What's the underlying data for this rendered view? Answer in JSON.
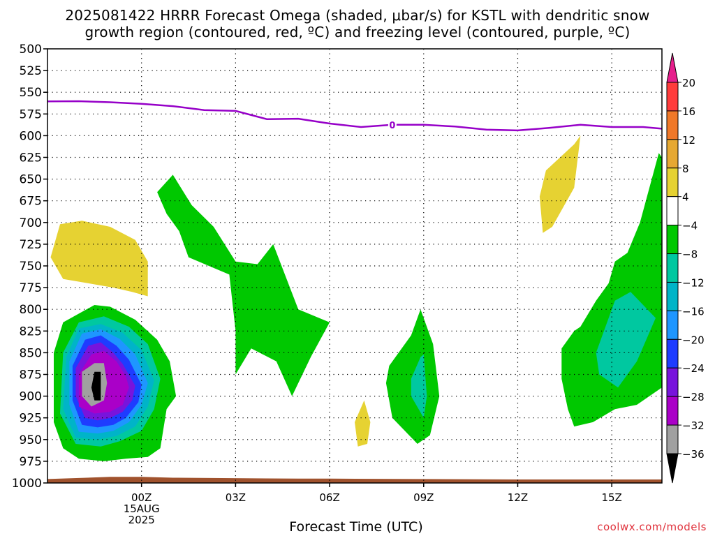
{
  "header": {
    "title_line1": "2025081422 HRRR Forecast Omega (shaded, μbar/s) for KSTL with dendritic snow",
    "title_line2": "growth region (contoured, red, ºC) and freezing level (contoured, purple, ºC)"
  },
  "footer": {
    "xlabel": "Forecast Time (UTC)",
    "credit": "coolwx.com/models"
  },
  "chart_data": {
    "type": "contour",
    "x_unit": "forecast hour (hours after 2025-08-15 00Z)",
    "xlim": [
      -3,
      16.6
    ],
    "ylim": [
      1000,
      500
    ],
    "y_reversed": true,
    "xticks": [
      {
        "x": 0,
        "label": "00Z",
        "sub1": "15AUG",
        "sub2": "2025"
      },
      {
        "x": 3,
        "label": "03Z"
      },
      {
        "x": 6,
        "label": "06Z"
      },
      {
        "x": 9,
        "label": "09Z"
      },
      {
        "x": 12,
        "label": "12Z"
      },
      {
        "x": 15,
        "label": "15Z"
      }
    ],
    "yticks": [
      500,
      525,
      550,
      575,
      600,
      625,
      650,
      675,
      700,
      725,
      750,
      775,
      800,
      825,
      850,
      875,
      900,
      925,
      950,
      975,
      1000
    ],
    "grid": true,
    "colorbar": {
      "labels": [
        "20",
        "16",
        "12",
        "8",
        "4",
        "−4",
        "−8",
        "−12",
        "−16",
        "−20",
        "−24",
        "−28",
        "−32",
        "−36"
      ],
      "colors": [
        "#ff3c3c",
        "#f07828",
        "#e6a832",
        "#e6d232",
        "#ffffff",
        "#00c800",
        "#00c8a0",
        "#00b4c8",
        "#1e96ff",
        "#1e3cff",
        "#7814dc",
        "#aa00c8",
        "#a0a0a0"
      ],
      "top_arrow": "#e61e8c",
      "bottom_arrow": "#000000"
    },
    "freezing_level": {
      "label": "0",
      "label_x": 8.0,
      "color": "#9600c8",
      "x": [
        -3,
        -2,
        -1,
        0,
        1,
        2,
        3,
        4,
        5,
        6,
        7,
        8,
        9,
        10,
        11,
        12,
        13,
        14,
        15,
        16,
        16.6
      ],
      "y": [
        560.5,
        560.3,
        561.5,
        563.3,
        566,
        570.5,
        571.5,
        581,
        580.5,
        586,
        590,
        587.5,
        587.5,
        589.5,
        593,
        594,
        591,
        587.5,
        590,
        590,
        592
      ]
    },
    "omega_regions": [
      {
        "level": "4 to 8",
        "color": "#e6d232",
        "x": [
          -2.6,
          -1.9,
          -1.0,
          -0.2,
          0.2,
          0.2,
          -0.3,
          -0.9,
          -1.7,
          -2.5,
          -2.9,
          -2.6
        ],
        "y": [
          702,
          698,
          705,
          720,
          745,
          785,
          780,
          775,
          770,
          765,
          740,
          702
        ]
      },
      {
        "level": "4 to 8",
        "color": "#e6d232",
        "x": [
          6.8,
          7.1,
          7.3,
          7.2,
          6.9,
          6.8
        ],
        "y": [
          930,
          905,
          930,
          955,
          958,
          930
        ]
      },
      {
        "level": "4 to 8",
        "color": "#e6d232",
        "x": [
          13.8,
          14.0,
          13.8,
          13.1,
          12.8,
          12.7,
          12.9,
          13.8
        ],
        "y": [
          610,
          600,
          660,
          705,
          712,
          670,
          640,
          610
        ]
      },
      {
        "level": "-4 to -8",
        "color": "#00c800",
        "x": [
          0.5,
          1.0,
          1.6,
          2.3,
          3.0,
          3.7,
          4.2,
          5.0,
          6.0,
          5.4,
          4.8,
          4.3,
          3.5,
          3.0,
          3.0,
          2.8,
          1.5,
          1.2,
          0.8,
          0.5
        ],
        "y": [
          665,
          645,
          680,
          705,
          745,
          748,
          725,
          800,
          815,
          855,
          900,
          860,
          845,
          875,
          825,
          760,
          740,
          710,
          690,
          665
        ]
      },
      {
        "level": "-4 to -8",
        "color": "#00c800",
        "x": [
          -2.0,
          -1.5,
          -1.0,
          -0.2,
          0.5,
          0.9,
          1.1,
          0.8,
          0.6,
          0.2,
          -0.5,
          -1.2,
          -2.0,
          -2.5,
          -2.8,
          -2.8,
          -2.5,
          -2.0
        ],
        "y": [
          805,
          795,
          797,
          812,
          835,
          860,
          900,
          915,
          960,
          970,
          972,
          975,
          972,
          960,
          930,
          850,
          815,
          805
        ]
      },
      {
        "level": "-4 to -8",
        "color": "#00c800",
        "x": [
          8.6,
          8.9,
          9.3,
          9.5,
          9.2,
          8.8,
          8.0,
          7.8,
          7.9,
          8.6
        ],
        "y": [
          830,
          800,
          840,
          900,
          945,
          955,
          925,
          885,
          865,
          830
        ]
      },
      {
        "level": "-4 to -8",
        "color": "#00c800",
        "x": [
          16.6,
          16.6,
          15.8,
          15.1,
          14.4,
          13.8,
          13.6,
          13.4,
          13.4,
          13.8,
          14.0,
          14.5,
          14.9,
          15.1,
          15.5,
          15.9,
          16.5,
          16.6
        ],
        "y": [
          625,
          890,
          910,
          915,
          930,
          935,
          915,
          880,
          845,
          825,
          820,
          790,
          770,
          745,
          735,
          700,
          620,
          625
        ]
      },
      {
        "level": "-8 to -12",
        "color": "#00c8a0",
        "x": [
          15.1,
          15.6,
          16.4,
          15.8,
          15.2,
          14.6,
          14.5,
          15.1
        ],
        "y": [
          790,
          780,
          810,
          860,
          890,
          875,
          850,
          790
        ]
      },
      {
        "level": "-8 to -12",
        "color": "#00c8a0",
        "x": [
          8.9,
          9.0,
          9.1,
          9.0,
          8.6,
          8.6,
          8.9
        ],
        "y": [
          855,
          852,
          900,
          925,
          900,
          880,
          855
        ]
      },
      {
        "level": "-8 to -12",
        "color": "#00c8a0",
        "x": [
          -2.0,
          -1.2,
          -0.4,
          0.2,
          0.6,
          0.4,
          0.0,
          -0.7,
          -1.3,
          -2.1,
          -2.6,
          -2.5,
          -2.0
        ],
        "y": [
          815,
          808,
          820,
          840,
          880,
          915,
          940,
          952,
          958,
          955,
          920,
          850,
          815
        ]
      },
      {
        "level": "-12 to -16",
        "color": "#00b4c8",
        "x": [
          -2.0,
          -1.3,
          -0.6,
          0.0,
          0.4,
          0.2,
          -0.2,
          -0.8,
          -1.4,
          -2.1,
          -2.5,
          -2.4,
          -2.0
        ],
        "y": [
          822,
          817,
          827,
          847,
          882,
          912,
          935,
          946,
          950,
          948,
          915,
          855,
          822
        ]
      },
      {
        "level": "-16 to -20",
        "color": "#1e96ff",
        "x": [
          -1.9,
          -1.3,
          -0.7,
          -0.2,
          0.2,
          0.0,
          -0.4,
          -0.9,
          -1.4,
          -2.0,
          -2.3,
          -2.3,
          -1.9
        ],
        "y": [
          828,
          823,
          834,
          852,
          885,
          910,
          930,
          940,
          943,
          941,
          910,
          860,
          828
        ]
      },
      {
        "level": "-20 to -24",
        "color": "#1e3cff",
        "x": [
          -1.8,
          -1.3,
          -0.8,
          -0.4,
          0.0,
          -0.1,
          -0.5,
          -0.9,
          -1.4,
          -1.9,
          -2.2,
          -2.2,
          -1.8
        ],
        "y": [
          835,
          830,
          842,
          858,
          887,
          907,
          925,
          933,
          936,
          933,
          905,
          865,
          835
        ]
      },
      {
        "level": "-24 to -28",
        "color": "#7814dc",
        "x": [
          -1.7,
          -1.3,
          -0.9,
          -0.6,
          -0.2,
          -0.3,
          -0.6,
          -1.0,
          -1.4,
          -1.8,
          -2.1,
          -2.1,
          -1.7
        ],
        "y": [
          842,
          838,
          850,
          863,
          888,
          905,
          918,
          925,
          928,
          925,
          900,
          868,
          842
        ]
      },
      {
        "level": "-28 to -32",
        "color": "#aa00c8",
        "x": [
          -1.6,
          -1.2,
          -0.8,
          -0.5,
          -0.4,
          -0.6,
          -1.0,
          -1.5,
          -2.0,
          -2.0,
          -1.6
        ],
        "y": [
          852,
          848,
          860,
          877,
          890,
          910,
          918,
          920,
          912,
          875,
          852
        ]
      },
      {
        "level": "-32 to -36",
        "color": "#a0a0a0",
        "x": [
          -1.5,
          -1.2,
          -1.1,
          -1.2,
          -1.6,
          -1.9,
          -1.9,
          -1.5
        ],
        "y": [
          862,
          862,
          885,
          905,
          912,
          900,
          872,
          862
        ]
      },
      {
        "level": "< -36",
        "color": "#000000",
        "x": [
          -1.5,
          -1.3,
          -1.3,
          -1.5,
          -1.6,
          -1.5
        ],
        "y": [
          872,
          872,
          905,
          905,
          890,
          872
        ]
      }
    ],
    "terrain": {
      "color": "#a0522d",
      "x": [
        -3,
        -1,
        0,
        1,
        5,
        6,
        9,
        12,
        16.6
      ],
      "y": [
        995.5,
        993,
        993,
        994,
        995,
        995,
        995.5,
        996,
        996
      ]
    }
  }
}
